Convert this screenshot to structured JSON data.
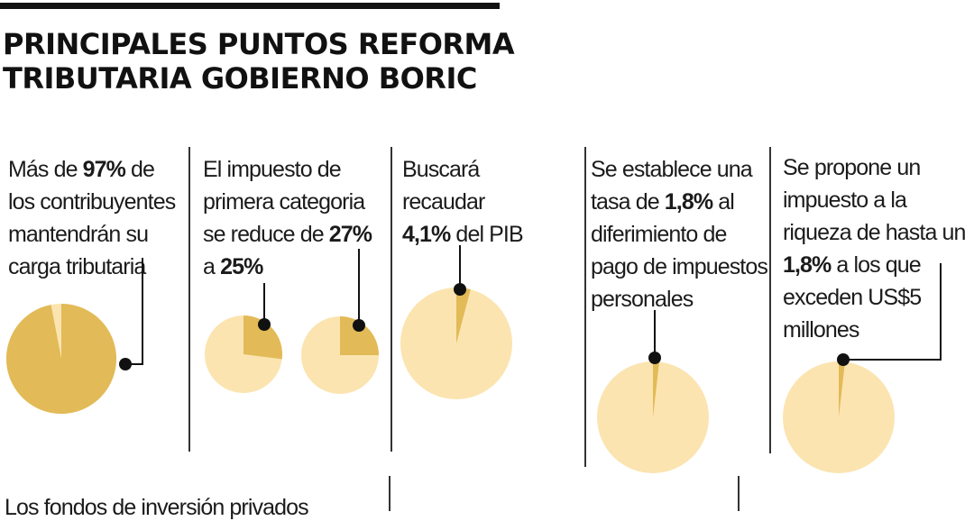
{
  "title": {
    "line1": "PRINCIPALES PUNTOS REFORMA",
    "line2": "TRIBUTARIA GOBIERNO BORIC"
  },
  "colors": {
    "pie_dark": "#e2ba57",
    "pie_light": "#fbe4b0",
    "rule": "#111111"
  },
  "panels": [
    {
      "lines": [
        [
          {
            "t": "Más de "
          },
          {
            "t": "97%",
            "b": true
          },
          {
            "t": " de"
          }
        ],
        [
          {
            "t": "los contribuyentes"
          }
        ],
        [
          {
            "t": "mantendrán su"
          }
        ],
        [
          {
            "t": "carga tributaria"
          }
        ]
      ]
    },
    {
      "lines": [
        [
          {
            "t": "El impuesto de"
          }
        ],
        [
          {
            "t": "primera categoria"
          }
        ],
        [
          {
            "t": "se reduce de "
          },
          {
            "t": "27%",
            "b": true
          }
        ],
        [
          {
            "t": "a "
          },
          {
            "t": "25%",
            "b": true
          }
        ]
      ]
    },
    {
      "lines": [
        [
          {
            "t": "Buscará"
          }
        ],
        [
          {
            "t": "recaudar"
          }
        ],
        [
          {
            "t": "4,1%",
            "b": true
          },
          {
            "t": " del PIB"
          }
        ]
      ]
    },
    {
      "lines": [
        [
          {
            "t": "Se establece una"
          }
        ],
        [
          {
            "t": "tasa de "
          },
          {
            "t": "1,8%",
            "b": true
          },
          {
            "t": " al"
          }
        ],
        [
          {
            "t": "diferimiento de"
          }
        ],
        [
          {
            "t": "pago de impuestos"
          }
        ],
        [
          {
            "t": "personales"
          }
        ]
      ]
    },
    {
      "lines": [
        [
          {
            "t": "Se propone un"
          }
        ],
        [
          {
            "t": "impuesto a la"
          }
        ],
        [
          {
            "t": "riqueza de hasta un"
          }
        ],
        [
          {
            "t": "1,8%",
            "b": true
          },
          {
            "t": " a los que"
          }
        ],
        [
          {
            "t": "exceden US$5"
          }
        ],
        [
          {
            "t": "millones"
          }
        ]
      ]
    }
  ],
  "pies": [
    {
      "percent": 97,
      "dark_is_share": true
    },
    {
      "percent": 27,
      "dark_is_share": true
    },
    {
      "percent": 25,
      "dark_is_share": true
    },
    {
      "percent": 4.1,
      "dark_is_share": true
    },
    {
      "percent": 1.8,
      "dark_is_share": true
    },
    {
      "percent": 1.8,
      "dark_is_share": true
    }
  ],
  "bottom_text": "Los fondos de inversión privados"
}
